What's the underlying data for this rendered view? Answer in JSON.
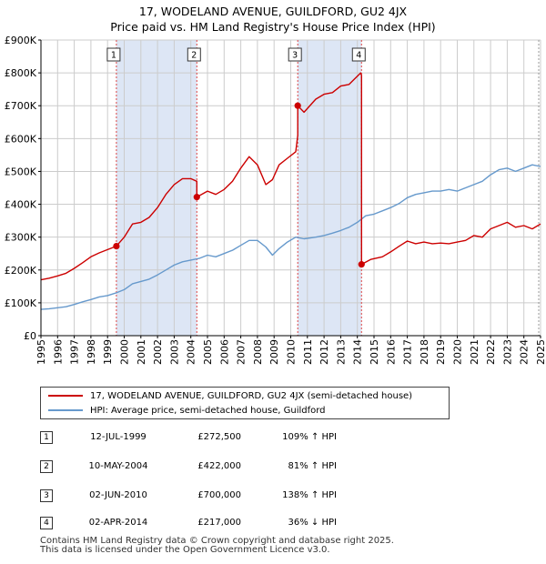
{
  "title": {
    "line1": "17, WODELAND AVENUE, GUILDFORD, GU2 4JX",
    "line2": "Price paid vs. HM Land Registry's House Price Index (HPI)"
  },
  "colors": {
    "price_line": "#cc0000",
    "hpi_line": "#6699cc",
    "shade": "#dde6f5",
    "marker_vline": "#dd4444",
    "grid": "#cccccc"
  },
  "legend": {
    "price_label": "17, WODELAND AVENUE, GUILDFORD, GU2 4JX (semi-detached house)",
    "hpi_label": "HPI: Average price, semi-detached house, Guildford"
  },
  "sales": [
    {
      "num": "1",
      "date": "12-JUL-1999",
      "price": "£272,500",
      "hpi": "109% ↑ HPI"
    },
    {
      "num": "2",
      "date": "10-MAY-2004",
      "price": "£422,000",
      "hpi": "81% ↑ HPI"
    },
    {
      "num": "3",
      "date": "02-JUN-2010",
      "price": "£700,000",
      "hpi": "138% ↑ HPI"
    },
    {
      "num": "4",
      "date": "02-APR-2014",
      "price": "£217,000",
      "hpi": "36% ↓ HPI"
    }
  ],
  "footer": {
    "line1": "Contains HM Land Registry data © Crown copyright and database right 2025.",
    "line2": "This data is licensed under the Open Government Licence v3.0."
  },
  "chart_data": {
    "type": "line",
    "title": "17, WODELAND AVENUE, GUILDFORD, GU2 4JX",
    "subtitle": "Price paid vs. HM Land Registry's House Price Index (HPI)",
    "xlim": [
      1995.0,
      2025.0
    ],
    "ylim": [
      0,
      900000
    ],
    "x_ticks": [
      1995,
      1996,
      1997,
      1998,
      1999,
      2000,
      2001,
      2002,
      2003,
      2004,
      2005,
      2006,
      2007,
      2008,
      2009,
      2010,
      2011,
      2012,
      2013,
      2014,
      2015,
      2016,
      2017,
      2018,
      2019,
      2020,
      2021,
      2022,
      2023,
      2024,
      2025
    ],
    "y_ticks": [
      0,
      100000,
      200000,
      300000,
      400000,
      500000,
      600000,
      700000,
      800000,
      900000
    ],
    "y_tick_labels": [
      "£0",
      "£100K",
      "£200K",
      "£300K",
      "£400K",
      "£500K",
      "£600K",
      "£700K",
      "£800K",
      "£900K"
    ],
    "grid": true,
    "sale_markers": [
      {
        "label": "1",
        "x": 1999.53,
        "y": 272500
      },
      {
        "label": "2",
        "x": 2004.36,
        "y": 422000
      },
      {
        "label": "3",
        "x": 2010.42,
        "y": 700000
      },
      {
        "label": "4",
        "x": 2014.25,
        "y": 217000
      }
    ],
    "shaded_ranges": [
      [
        1999.53,
        2004.36
      ],
      [
        2010.42,
        2014.25
      ]
    ],
    "series": [
      {
        "name": "17, WODELAND AVENUE, GUILDFORD, GU2 4JX (semi-detached house)",
        "x": [
          1995.0,
          1995.5,
          1996.0,
          1996.5,
          1997.0,
          1997.5,
          1998.0,
          1998.5,
          1999.0,
          1999.53,
          2000.0,
          2000.5,
          2001.0,
          2001.5,
          2002.0,
          2002.5,
          2003.0,
          2003.5,
          2004.0,
          2004.36,
          2004.36,
          2005.0,
          2005.5,
          2006.0,
          2006.5,
          2007.0,
          2007.5,
          2008.0,
          2008.5,
          2008.9,
          2009.3,
          2009.8,
          2010.3,
          2010.42,
          2010.42,
          2010.8,
          2011.5,
          2012.0,
          2012.5,
          2013.0,
          2013.5,
          2014.0,
          2014.2,
          2014.25,
          2014.25,
          2014.8,
          2015.5,
          2016.0,
          2016.5,
          2017.0,
          2017.5,
          2018.0,
          2018.5,
          2019.0,
          2019.5,
          2020.0,
          2020.5,
          2021.0,
          2021.5,
          2022.0,
          2022.5,
          2023.0,
          2023.5,
          2024.0,
          2024.5,
          2025.0
        ],
        "values": [
          170000,
          175000,
          182000,
          190000,
          205000,
          222000,
          240000,
          252000,
          262000,
          272500,
          300000,
          340000,
          345000,
          360000,
          390000,
          430000,
          460000,
          478000,
          478000,
          470000,
          422000,
          440000,
          430000,
          445000,
          470000,
          510000,
          545000,
          520000,
          460000,
          475000,
          520000,
          540000,
          560000,
          610000,
          700000,
          680000,
          720000,
          735000,
          740000,
          760000,
          765000,
          790000,
          800000,
          792000,
          217000,
          232000,
          240000,
          255000,
          272000,
          288000,
          280000,
          285000,
          280000,
          282000,
          280000,
          285000,
          290000,
          305000,
          300000,
          325000,
          335000,
          345000,
          330000,
          335000,
          325000,
          340000
        ]
      },
      {
        "name": "HPI: Average price, semi-detached house, Guildford",
        "x": [
          1995.0,
          1995.5,
          1996.0,
          1996.5,
          1997.0,
          1997.5,
          1998.0,
          1998.5,
          1999.0,
          1999.5,
          2000.0,
          2000.5,
          2001.0,
          2001.5,
          2002.0,
          2002.5,
          2003.0,
          2003.5,
          2004.0,
          2004.5,
          2005.0,
          2005.5,
          2006.0,
          2006.5,
          2007.0,
          2007.5,
          2008.0,
          2008.5,
          2008.9,
          2009.3,
          2009.8,
          2010.3,
          2010.8,
          2011.5,
          2012.0,
          2012.5,
          2013.0,
          2013.5,
          2014.0,
          2014.5,
          2015.0,
          2015.5,
          2016.0,
          2016.5,
          2017.0,
          2017.5,
          2018.0,
          2018.5,
          2019.0,
          2019.5,
          2020.0,
          2020.5,
          2021.0,
          2021.5,
          2022.0,
          2022.5,
          2023.0,
          2023.5,
          2024.0,
          2024.5,
          2025.0
        ],
        "values": [
          80000,
          82000,
          85000,
          88000,
          95000,
          103000,
          110000,
          118000,
          122000,
          130000,
          140000,
          158000,
          165000,
          172000,
          185000,
          200000,
          215000,
          225000,
          230000,
          235000,
          245000,
          240000,
          250000,
          260000,
          275000,
          290000,
          290000,
          270000,
          245000,
          265000,
          285000,
          300000,
          295000,
          300000,
          305000,
          312000,
          320000,
          330000,
          345000,
          365000,
          370000,
          380000,
          390000,
          402000,
          420000,
          430000,
          435000,
          440000,
          440000,
          445000,
          440000,
          450000,
          460000,
          470000,
          490000,
          505000,
          510000,
          500000,
          510000,
          520000,
          515000
        ]
      }
    ]
  }
}
